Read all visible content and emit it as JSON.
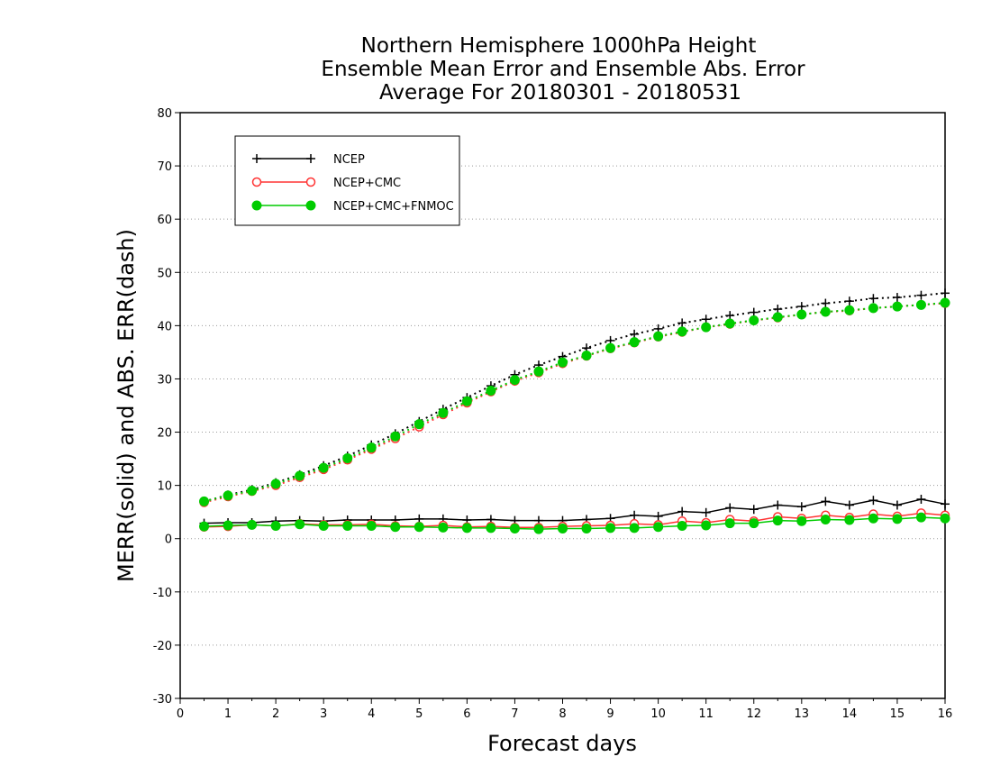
{
  "chart_data": {
    "type": "line",
    "title_lines": [
      "Northern Hemisphere 1000hPa Height",
      "Ensemble Mean Error and Ensemble Abs. Error",
      "Average For 20180301 - 20180531"
    ],
    "xlabel": "Forecast days",
    "ylabel": "MERR(solid) and ABS. ERR(dash)",
    "xlim": [
      0,
      16
    ],
    "ylim": [
      -30,
      80
    ],
    "xticks": [
      0,
      1,
      2,
      3,
      4,
      5,
      6,
      7,
      8,
      9,
      10,
      11,
      12,
      13,
      14,
      15,
      16
    ],
    "yticks": [
      -30,
      -20,
      -10,
      0,
      10,
      20,
      30,
      40,
      50,
      60,
      70,
      80
    ],
    "grid": "horizontal-dotted",
    "legend_position": "top-left",
    "x": [
      0.5,
      1,
      1.5,
      2,
      2.5,
      3,
      3.5,
      4,
      4.5,
      5,
      5.5,
      6,
      6.5,
      7,
      7.5,
      8,
      8.5,
      9,
      9.5,
      10,
      10.5,
      11,
      11.5,
      12,
      12.5,
      13,
      13.5,
      14,
      14.5,
      15,
      15.5,
      16
    ],
    "series": [
      {
        "name": "NCEP",
        "color": "#000000",
        "marker": "plus",
        "merr": [
          2.9,
          3.0,
          3.0,
          3.3,
          3.4,
          3.3,
          3.5,
          3.5,
          3.5,
          3.7,
          3.7,
          3.5,
          3.6,
          3.4,
          3.4,
          3.4,
          3.6,
          3.8,
          4.4,
          4.2,
          5.1,
          4.9,
          5.8,
          5.5,
          6.3,
          6.0,
          7.0,
          6.3,
          7.2,
          6.3,
          7.4,
          6.5
        ],
        "abs_err": [
          7.0,
          8.2,
          9.2,
          10.5,
          12.0,
          13.7,
          15.5,
          17.6,
          19.7,
          22.0,
          24.3,
          26.5,
          28.7,
          30.8,
          32.6,
          34.2,
          35.8,
          37.2,
          38.4,
          39.4,
          40.5,
          41.2,
          41.9,
          42.5,
          43.1,
          43.6,
          44.2,
          44.6,
          45.1,
          45.3,
          45.7,
          46.1
        ]
      },
      {
        "name": "NCEP+CMC",
        "color": "#ff3333",
        "marker": "open-circle",
        "merr": [
          2.2,
          2.3,
          2.6,
          2.4,
          2.8,
          2.6,
          2.6,
          2.7,
          2.4,
          2.3,
          2.5,
          2.2,
          2.3,
          2.1,
          2.1,
          2.3,
          2.4,
          2.5,
          2.8,
          2.6,
          3.3,
          3.0,
          3.6,
          3.3,
          4.1,
          3.8,
          4.4,
          4.0,
          4.6,
          4.2,
          4.8,
          4.4
        ],
        "abs_err": [
          6.8,
          7.9,
          8.9,
          10.0,
          11.5,
          13.0,
          14.8,
          16.8,
          18.8,
          21.0,
          23.3,
          25.5,
          27.6,
          29.6,
          31.2,
          32.9,
          34.3,
          35.7,
          36.8,
          37.9,
          38.8,
          39.7,
          40.3,
          41.0,
          41.5,
          42.1,
          42.6,
          42.8,
          43.3,
          43.6,
          43.9,
          44.2
        ]
      },
      {
        "name": "NCEP+CMC+FNMOC",
        "color": "#00cc00",
        "marker": "filled-circle",
        "merr": [
          2.3,
          2.5,
          2.6,
          2.4,
          2.7,
          2.4,
          2.4,
          2.4,
          2.2,
          2.2,
          2.1,
          2.0,
          2.0,
          1.9,
          1.8,
          1.9,
          1.9,
          2.0,
          2.0,
          2.2,
          2.4,
          2.5,
          2.9,
          2.9,
          3.4,
          3.3,
          3.6,
          3.5,
          3.8,
          3.7,
          4.0,
          3.8
        ],
        "abs_err": [
          7.0,
          8.1,
          9.0,
          10.3,
          11.8,
          13.3,
          15.1,
          17.1,
          19.2,
          21.5,
          23.6,
          25.8,
          27.8,
          29.8,
          31.4,
          33.1,
          34.4,
          35.8,
          36.9,
          38.0,
          38.9,
          39.7,
          40.4,
          41.0,
          41.6,
          42.1,
          42.6,
          42.9,
          43.3,
          43.6,
          43.9,
          44.3
        ]
      }
    ]
  }
}
